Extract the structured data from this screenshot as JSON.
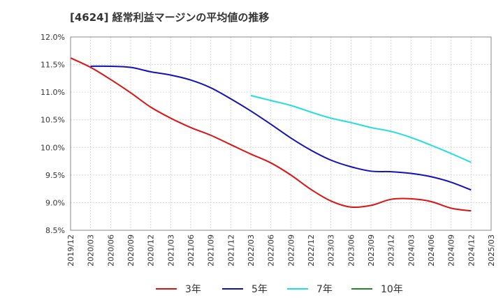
{
  "chart_data": {
    "type": "line",
    "title": "[4624]  経常利益マージンの平均値の推移",
    "xlabel": "",
    "ylabel": "",
    "x_ticks": [
      "2019/12",
      "2020/03",
      "2020/06",
      "2020/09",
      "2020/12",
      "2021/03",
      "2021/06",
      "2021/09",
      "2021/12",
      "2022/03",
      "2022/06",
      "2022/09",
      "2022/12",
      "2023/03",
      "2023/06",
      "2023/09",
      "2023/12",
      "2024/03",
      "2024/06",
      "2024/09",
      "2024/12",
      "2025/03"
    ],
    "y_ticks": [
      "8.5%",
      "9.0%",
      "9.5%",
      "10.0%",
      "10.5%",
      "11.0%",
      "11.5%",
      "12.0%"
    ],
    "ylim": [
      8.5,
      12.0
    ],
    "grid": true,
    "legend_position": "bottom",
    "series": [
      {
        "name": "3年",
        "color": "#dd1111",
        "x": [
          "2019/12",
          "2020/03",
          "2020/06",
          "2020/09",
          "2020/12",
          "2021/03",
          "2021/06",
          "2021/09",
          "2021/12",
          "2022/03",
          "2022/06",
          "2022/09",
          "2022/12",
          "2023/03",
          "2023/06",
          "2023/09",
          "2023/12",
          "2024/03",
          "2024/06",
          "2024/09",
          "2024/12"
        ],
        "values": [
          11.62,
          11.45,
          11.23,
          10.99,
          10.73,
          10.53,
          10.36,
          10.22,
          10.05,
          9.88,
          9.72,
          9.5,
          9.24,
          9.03,
          8.92,
          8.95,
          9.06,
          9.07,
          9.02,
          8.9,
          8.85
        ]
      },
      {
        "name": "5年",
        "color": "#1111bb",
        "x": [
          "2020/03",
          "2020/06",
          "2020/09",
          "2020/12",
          "2021/03",
          "2021/06",
          "2021/09",
          "2021/12",
          "2022/03",
          "2022/06",
          "2022/09",
          "2022/12",
          "2023/03",
          "2023/06",
          "2023/09",
          "2023/12",
          "2024/03",
          "2024/06",
          "2024/09",
          "2024/12"
        ],
        "values": [
          11.47,
          11.47,
          11.45,
          11.37,
          11.31,
          11.22,
          11.08,
          10.88,
          10.66,
          10.42,
          10.17,
          9.95,
          9.77,
          9.65,
          9.57,
          9.56,
          9.53,
          9.47,
          9.37,
          9.23
        ]
      },
      {
        "name": "7年",
        "color": "#22dddd",
        "x": [
          "2022/03",
          "2022/06",
          "2022/09",
          "2022/12",
          "2023/03",
          "2023/06",
          "2023/09",
          "2023/12",
          "2024/03",
          "2024/06",
          "2024/09",
          "2024/12"
        ],
        "values": [
          10.94,
          10.85,
          10.76,
          10.64,
          10.53,
          10.45,
          10.36,
          10.29,
          10.18,
          10.04,
          9.89,
          9.73
        ]
      },
      {
        "name": "10年",
        "color": "#228822",
        "x": [],
        "values": []
      }
    ]
  }
}
